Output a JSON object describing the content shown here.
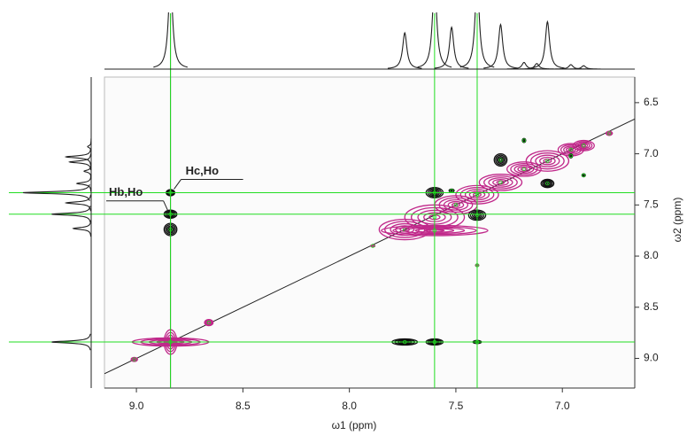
{
  "chart_data": {
    "type": "contour",
    "x_label": "ω1 (ppm)",
    "y_label": "ω2 (ppm)",
    "xlim": [
      9.15,
      6.66
    ],
    "ylim": [
      6.25,
      9.29
    ],
    "xticks": [
      {
        "value": 9,
        "label": "9.0"
      },
      8.5,
      {
        "value": 8,
        "label": "8.0"
      },
      7.5,
      {
        "value": 7,
        "label": "7.0"
      }
    ],
    "yticks": [
      6.5,
      {
        "value": 7,
        "label": "7.0"
      },
      7.5,
      {
        "value": 8,
        "label": "8.0"
      },
      8.5,
      {
        "value": 9,
        "label": "9.0"
      }
    ],
    "series": [
      {
        "color": "#c0288a",
        "x": [
          8.84,
          8.84,
          9.01,
          8.66,
          7.89,
          7.74,
          7.6,
          7.6,
          7.5,
          7.4,
          7.29,
          7.18,
          7.07,
          6.96,
          6.9,
          6.78,
          7.4
        ],
        "y": [
          8.84,
          8.84,
          9.01,
          8.65,
          7.9,
          7.74,
          7.62,
          7.75,
          7.5,
          7.4,
          7.28,
          7.15,
          7.07,
          6.96,
          6.92,
          6.8,
          8.09
        ],
        "wx": [
          0.18,
          0.03,
          0.015,
          0.02,
          0.01,
          0.12,
          0.14,
          0.25,
          0.1,
          0.1,
          0.1,
          0.08,
          0.1,
          0.06,
          0.05,
          0.015,
          0.008
        ],
        "wy": [
          0.04,
          0.12,
          0.02,
          0.03,
          0.01,
          0.1,
          0.12,
          0.05,
          0.09,
          0.09,
          0.08,
          0.07,
          0.1,
          0.06,
          0.05,
          0.02,
          0.012
        ]
      },
      {
        "color": "#111111",
        "x": [
          8.84,
          8.84,
          8.84,
          7.74,
          7.6,
          7.4,
          7.6,
          7.4,
          7.29,
          7.07,
          7.52,
          6.96,
          6.9,
          7.18
        ],
        "y": [
          7.38,
          7.59,
          7.74,
          8.84,
          8.84,
          8.84,
          7.38,
          7.6,
          7.06,
          7.29,
          7.36,
          7.02,
          7.21,
          6.87
        ],
        "wx": [
          0.02,
          0.03,
          0.03,
          0.06,
          0.04,
          0.02,
          0.04,
          0.04,
          0.03,
          0.03,
          0.012,
          0.008,
          0.008,
          0.008
        ],
        "wy": [
          0.03,
          0.04,
          0.06,
          0.03,
          0.03,
          0.015,
          0.05,
          0.05,
          0.06,
          0.04,
          0.015,
          0.02,
          0.015,
          0.02
        ]
      }
    ],
    "top_trace": {
      "linewidth": 0.012,
      "positions": [
        8.84,
        7.74,
        7.6,
        7.52,
        7.4,
        7.29,
        7.18,
        7.12,
        7.07,
        6.96,
        6.9
      ],
      "heights": [
        1.6,
        0.65,
        1.6,
        0.75,
        1.6,
        0.8,
        0.12,
        0.1,
        0.85,
        0.08,
        0.06
      ]
    },
    "left_trace": {
      "linewidth": 0.012,
      "positions": [
        7.38,
        7.48,
        7.59,
        7.73,
        8.84,
        7.03,
        7.08,
        7.29,
        7.17,
        6.93
      ],
      "heights": [
        0.95,
        0.35,
        0.55,
        0.25,
        0.55,
        0.35,
        0.3,
        0.2,
        0.1,
        0.05
      ]
    },
    "guides": {
      "color": "#22dd22",
      "x": [
        8.84,
        7.6,
        7.4
      ],
      "y": [
        7.38,
        7.59,
        8.84
      ]
    },
    "cursor_x": 8.84,
    "annotations": [
      {
        "text": "Hc,Ho",
        "x": 8.84,
        "y": 7.38
      },
      {
        "text": "Hb,Ho",
        "x": 8.84,
        "y": 7.59
      }
    ]
  }
}
